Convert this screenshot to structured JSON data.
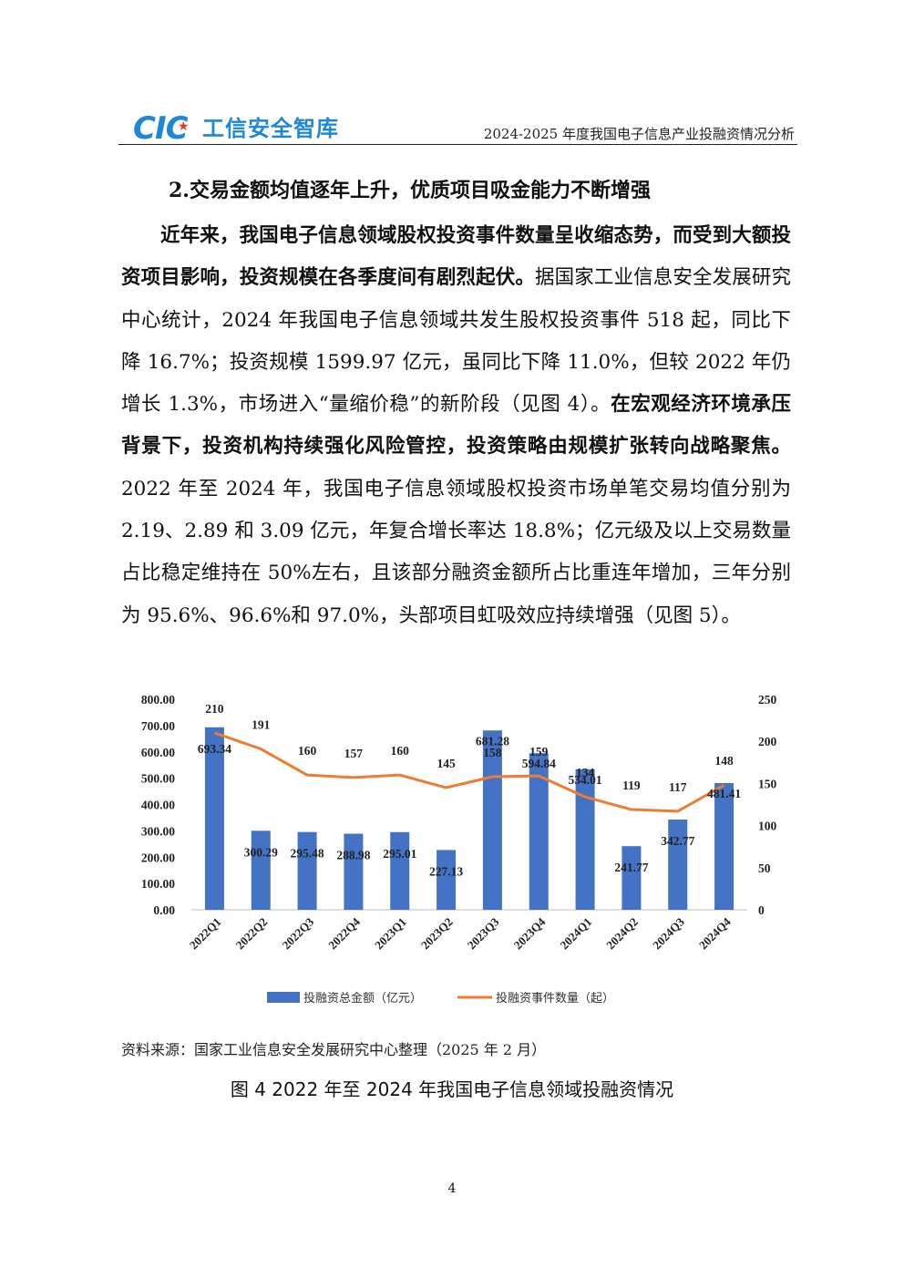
{
  "header": {
    "logo_text": "CIC",
    "logo_name": "工信安全智库",
    "title": "2024-2025 年度我国电子信息产业投融资情况分析"
  },
  "section": {
    "heading": "2.交易金额均值逐年上升，优质项目吸金能力不断增强"
  },
  "body": {
    "p1_bold1": "近年来，我国电子信息领域股权投资事件数量呈收缩态势，而受到大额投资项目影响，投资规模在各季度间有剧烈起伏。",
    "p1_text1": "据国家工业信息安全发展研究中心统计，2024 年我国电子信息领域共发生股权投资事件 518 起，同比下降 16.7%；投资规模 1599.97 亿元，虽同比下降 11.0%，但较 2022 年仍增长 1.3%，市场进入“量缩价稳”的新阶段（见图 4）。",
    "p1_bold2": "在宏观经济环境承压背景下，投资机构持续强化风险管控，投资策略由规模扩张转向战略聚焦。",
    "p1_text2": "2022 年至 2024 年，我国电子信息领域股权投资市场单笔交易均值分别为 2.19、2.89 和 3.09 亿元，年复合增长率达 18.8%；亿元级及以上交易数量占比稳定维持在 50%左右，且该部分融资金额所占比重连年增加，三年分别为 95.6%、96.6%和 97.0%，头部项目虹吸效应持续增强（见图 5）。"
  },
  "chart_data": {
    "type": "bar",
    "categories": [
      "2022Q1",
      "2022Q2",
      "2022Q3",
      "2022Q4",
      "2023Q1",
      "2023Q2",
      "2023Q3",
      "2023Q4",
      "2024Q1",
      "2024Q2",
      "2024Q3",
      "2024Q4"
    ],
    "series": [
      {
        "name": "投融资总金额（亿元）",
        "type": "bar",
        "axis": "left",
        "color": "#4472c4",
        "values": [
          693.34,
          300.29,
          295.48,
          288.98,
          295.01,
          227.13,
          681.28,
          594.84,
          534.01,
          241.77,
          342.77,
          481.41
        ],
        "labels": [
          "693.34",
          "300.29",
          "295.48",
          "288.98",
          "295.01",
          "227.13",
          "681.28",
          "594.84",
          "534.01",
          "241.77",
          "342.77",
          "481.41"
        ]
      },
      {
        "name": "投融资事件数量（起）",
        "type": "line",
        "axis": "right",
        "color": "#ed7d31",
        "values": [
          210,
          191,
          160,
          157,
          160,
          145,
          158,
          159,
          134,
          119,
          117,
          148
        ],
        "labels": [
          "210",
          "191",
          "160",
          "157",
          "160",
          "145",
          "158",
          "159",
          "134",
          "119",
          "117",
          "148"
        ]
      }
    ],
    "ylim_left": [
      0,
      800
    ],
    "yticks_left": [
      "0.00",
      "100.00",
      "200.00",
      "300.00",
      "400.00",
      "500.00",
      "600.00",
      "700.00",
      "800.00"
    ],
    "ylim_right": [
      0,
      250
    ],
    "yticks_right": [
      "0",
      "50",
      "100",
      "150",
      "200",
      "250"
    ],
    "legend": "bottom",
    "grid": false
  },
  "source": "资料来源：国家工业信息安全发展研究中心整理（2025 年 2 月）",
  "figure_caption": "图  4 2022 年至 2024 年我国电子信息领域投融资情况",
  "page_number": "4"
}
